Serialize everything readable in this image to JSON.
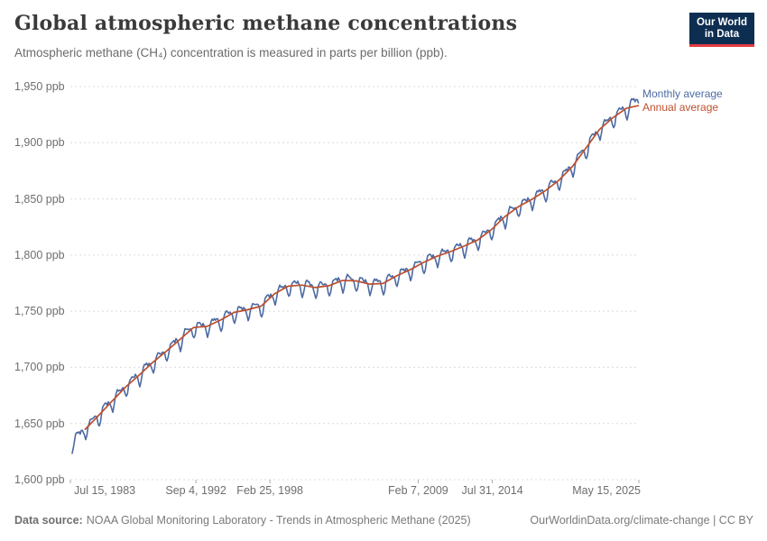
{
  "header": {
    "title": "Global atmospheric methane concentrations",
    "subtitle": "Atmospheric methane (CH₄) concentration is measured in parts per billion (ppb).",
    "logo": {
      "line1": "Our World",
      "line2": "in Data",
      "bg_color": "#0d2e51",
      "bar_color": "#e23a42"
    }
  },
  "chart_data": {
    "type": "line",
    "title": "Global atmospheric methane concentrations",
    "unit": "ppb",
    "grid": "horizontal-dashed",
    "legend_position": "right-of-line-ends",
    "y_range": [
      1600,
      1950
    ],
    "y_ticks": [
      1600,
      1650,
      1700,
      1750,
      1800,
      1850,
      1900,
      1950
    ],
    "y_tick_labels": [
      "1,600 ppb",
      "1,650 ppb",
      "1,700 ppb",
      "1,750 ppb",
      "1,800 ppb",
      "1,850 ppb",
      "1,900 ppb",
      "1,950 ppb"
    ],
    "x_range_decimal_years": [
      1983.54,
      2025.37
    ],
    "x_ticks": [
      {
        "label": "Jul 15, 1983",
        "decimal_year": 1983.54,
        "align": "start"
      },
      {
        "label": "Sep 4, 1992",
        "decimal_year": 1992.68,
        "align": "middle"
      },
      {
        "label": "Feb 25, 1998",
        "decimal_year": 1998.15,
        "align": "middle"
      },
      {
        "label": "Feb 7, 2009",
        "decimal_year": 2009.1,
        "align": "middle"
      },
      {
        "label": "Jul 31, 2014",
        "decimal_year": 2014.58,
        "align": "middle"
      },
      {
        "label": "May 15, 2025",
        "decimal_year": 2025.37,
        "align": "end"
      }
    ],
    "series": [
      {
        "name": "Monthly average",
        "color": "#4C6AA2",
        "type": "monthly",
        "start": "1983-07",
        "end": "2025-05",
        "derivation": "annual_anchor_values interpolated at mid-month plus seasonal_offsets_ppb"
      },
      {
        "name": "Annual average",
        "color": "#BE4F2D",
        "type": "annual",
        "first_year": 1984,
        "last_year": 2024,
        "end_point": {
          "decimal_year": 2025.37,
          "value": 1933
        }
      }
    ],
    "annual_anchor_values": {
      "1983": 1633.0,
      "1984": 1644.9,
      "1985": 1657.3,
      "1986": 1670.1,
      "1987": 1682.7,
      "1988": 1693.2,
      "1989": 1704.5,
      "1990": 1714.4,
      "1991": 1724.8,
      "1992": 1735.5,
      "1993": 1736.5,
      "1994": 1742.1,
      "1995": 1748.9,
      "1996": 1751.3,
      "1997": 1754.5,
      "1998": 1765.6,
      "1999": 1772.3,
      "2000": 1773.2,
      "2001": 1771.1,
      "2002": 1772.7,
      "2003": 1777.3,
      "2004": 1777.0,
      "2005": 1774.1,
      "2006": 1774.7,
      "2007": 1781.4,
      "2008": 1786.9,
      "2009": 1793.5,
      "2010": 1798.9,
      "2011": 1803.1,
      "2012": 1808.0,
      "2013": 1813.4,
      "2014": 1822.5,
      "2015": 1834.2,
      "2016": 1843.0,
      "2017": 1849.6,
      "2018": 1857.3,
      "2019": 1866.6,
      "2020": 1878.9,
      "2021": 1895.3,
      "2022": 1911.9,
      "2023": 1922.4,
      "2024": 1930.8,
      "2025": 1939.0
    },
    "seasonal_offsets_ppb": [
      3.2,
      1.4,
      2.6,
      1.2,
      -1.4,
      -6.5,
      -10.0,
      -7.0,
      -1.2,
      3.0,
      4.4,
      3.8
    ]
  },
  "legend": {
    "items": [
      {
        "label": "Monthly average",
        "color": "#4C6AA2"
      },
      {
        "label": "Annual average",
        "color": "#BE4F2D"
      }
    ]
  },
  "footer": {
    "source_label": "Data source:",
    "source_text": "NOAA Global Monitoring Laboratory - Trends in Atmospheric Methane (2025)",
    "url": "OurWorldinData.org/climate-change",
    "separator": " | ",
    "license": "CC BY"
  }
}
